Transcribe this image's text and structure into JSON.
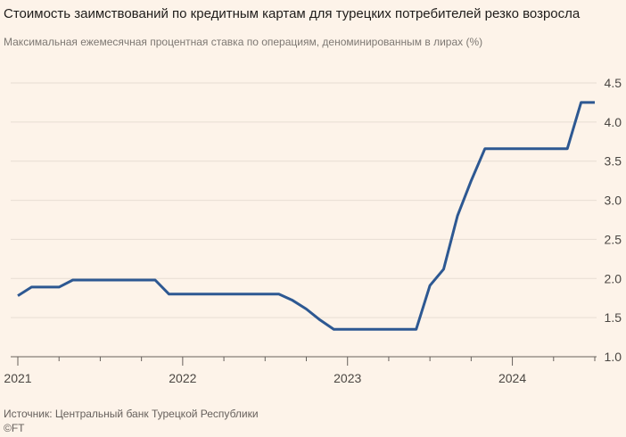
{
  "chart_data": {
    "type": "line",
    "title": "Стоимость заимствований по кредитным картам для турецких потребителей резко возросла",
    "subtitle": "Максимальная ежемесячная процентная ставка по операциям, деноминированным в лирах (%)",
    "xlabel": "",
    "ylabel": "",
    "ylim": [
      1.0,
      4.5
    ],
    "yticks": [
      "1.0",
      "1.5",
      "2.0",
      "2.5",
      "3.0",
      "3.5",
      "4.0",
      "4.5"
    ],
    "xlim": [
      "2021-01",
      "2024-07"
    ],
    "xticks": [
      "2021",
      "2022",
      "2023",
      "2024"
    ],
    "grid": "horizontal",
    "y_axis_side": "right",
    "colors": {
      "line": "#2d5892",
      "grid": "#e7ddd3",
      "axis": "#66605c",
      "background": "#fdf3e9"
    },
    "series": [
      {
        "x": [
          "2021-01",
          "2021-02",
          "2021-03",
          "2021-04",
          "2021-05",
          "2021-06",
          "2021-07",
          "2021-08",
          "2021-09",
          "2021-10",
          "2021-11",
          "2021-12",
          "2022-01",
          "2022-02",
          "2022-03",
          "2022-04",
          "2022-05",
          "2022-06",
          "2022-07",
          "2022-08",
          "2022-09",
          "2022-10",
          "2022-11",
          "2022-12",
          "2023-01",
          "2023-02",
          "2023-03",
          "2023-04",
          "2023-05",
          "2023-06",
          "2023-07",
          "2023-08",
          "2023-09",
          "2023-10",
          "2023-11",
          "2023-12",
          "2024-01",
          "2024-02",
          "2024-03",
          "2024-04",
          "2024-05",
          "2024-06",
          "2024-07"
        ],
        "values": [
          1.78,
          1.89,
          1.89,
          1.89,
          1.98,
          1.98,
          1.98,
          1.98,
          1.98,
          1.98,
          1.98,
          1.8,
          1.8,
          1.8,
          1.8,
          1.8,
          1.8,
          1.8,
          1.8,
          1.8,
          1.72,
          1.61,
          1.47,
          1.35,
          1.35,
          1.35,
          1.35,
          1.35,
          1.35,
          1.35,
          1.91,
          2.12,
          2.8,
          3.25,
          3.66,
          3.66,
          3.66,
          3.66,
          3.66,
          3.66,
          3.66,
          4.25,
          4.25
        ]
      }
    ]
  },
  "footer": {
    "source": "Источник: Центральный банк Турецкой Республики",
    "credit": "©FT"
  }
}
